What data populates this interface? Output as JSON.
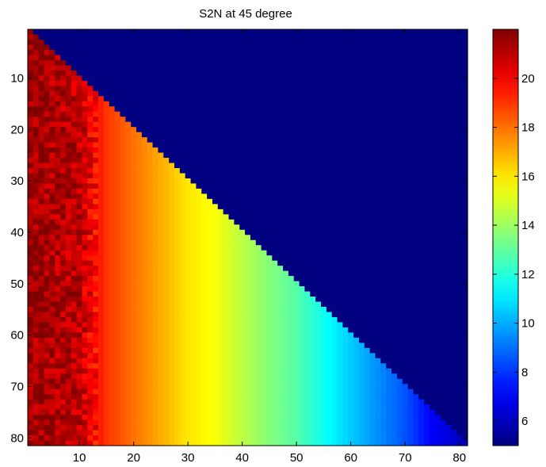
{
  "chart_data": {
    "type": "heatmap",
    "title": "S2N at 45 degree",
    "xlabel": "",
    "ylabel": "",
    "rows": 81,
    "cols": 81,
    "xlim": [
      0.5,
      81.5
    ],
    "ylim": [
      0.5,
      81.5
    ],
    "y_direction": "reversed",
    "x_ticks": [
      10,
      20,
      30,
      40,
      50,
      60,
      70,
      80
    ],
    "y_ticks": [
      10,
      20,
      30,
      40,
      50,
      60,
      70,
      80
    ],
    "colormap": "jet",
    "clim": [
      5.0,
      22.0
    ],
    "colorbar_ticks": [
      6,
      8,
      10,
      12,
      14,
      16,
      18,
      20
    ],
    "fill_value": 5.0,
    "fill_region": "upper-right triangle, cells where row < column",
    "column_profile": [
      {
        "col": 1,
        "value": 21.5
      },
      {
        "col": 10,
        "value": 21.0
      },
      {
        "col": 15,
        "value": 19.0
      },
      {
        "col": 20,
        "value": 18.0
      },
      {
        "col": 25,
        "value": 17.0
      },
      {
        "col": 30,
        "value": 16.0
      },
      {
        "col": 35,
        "value": 15.5
      },
      {
        "col": 40,
        "value": 14.5
      },
      {
        "col": 45,
        "value": 13.6
      },
      {
        "col": 50,
        "value": 12.8
      },
      {
        "col": 55,
        "value": 11.6
      },
      {
        "col": 60,
        "value": 10.5
      },
      {
        "col": 65,
        "value": 9.5
      },
      {
        "col": 70,
        "value": 8.5
      },
      {
        "col": 75,
        "value": 7.0
      },
      {
        "col": 81,
        "value": 6.0
      }
    ],
    "noise_amplitude_cols_1_to_13": 1.0
  }
}
